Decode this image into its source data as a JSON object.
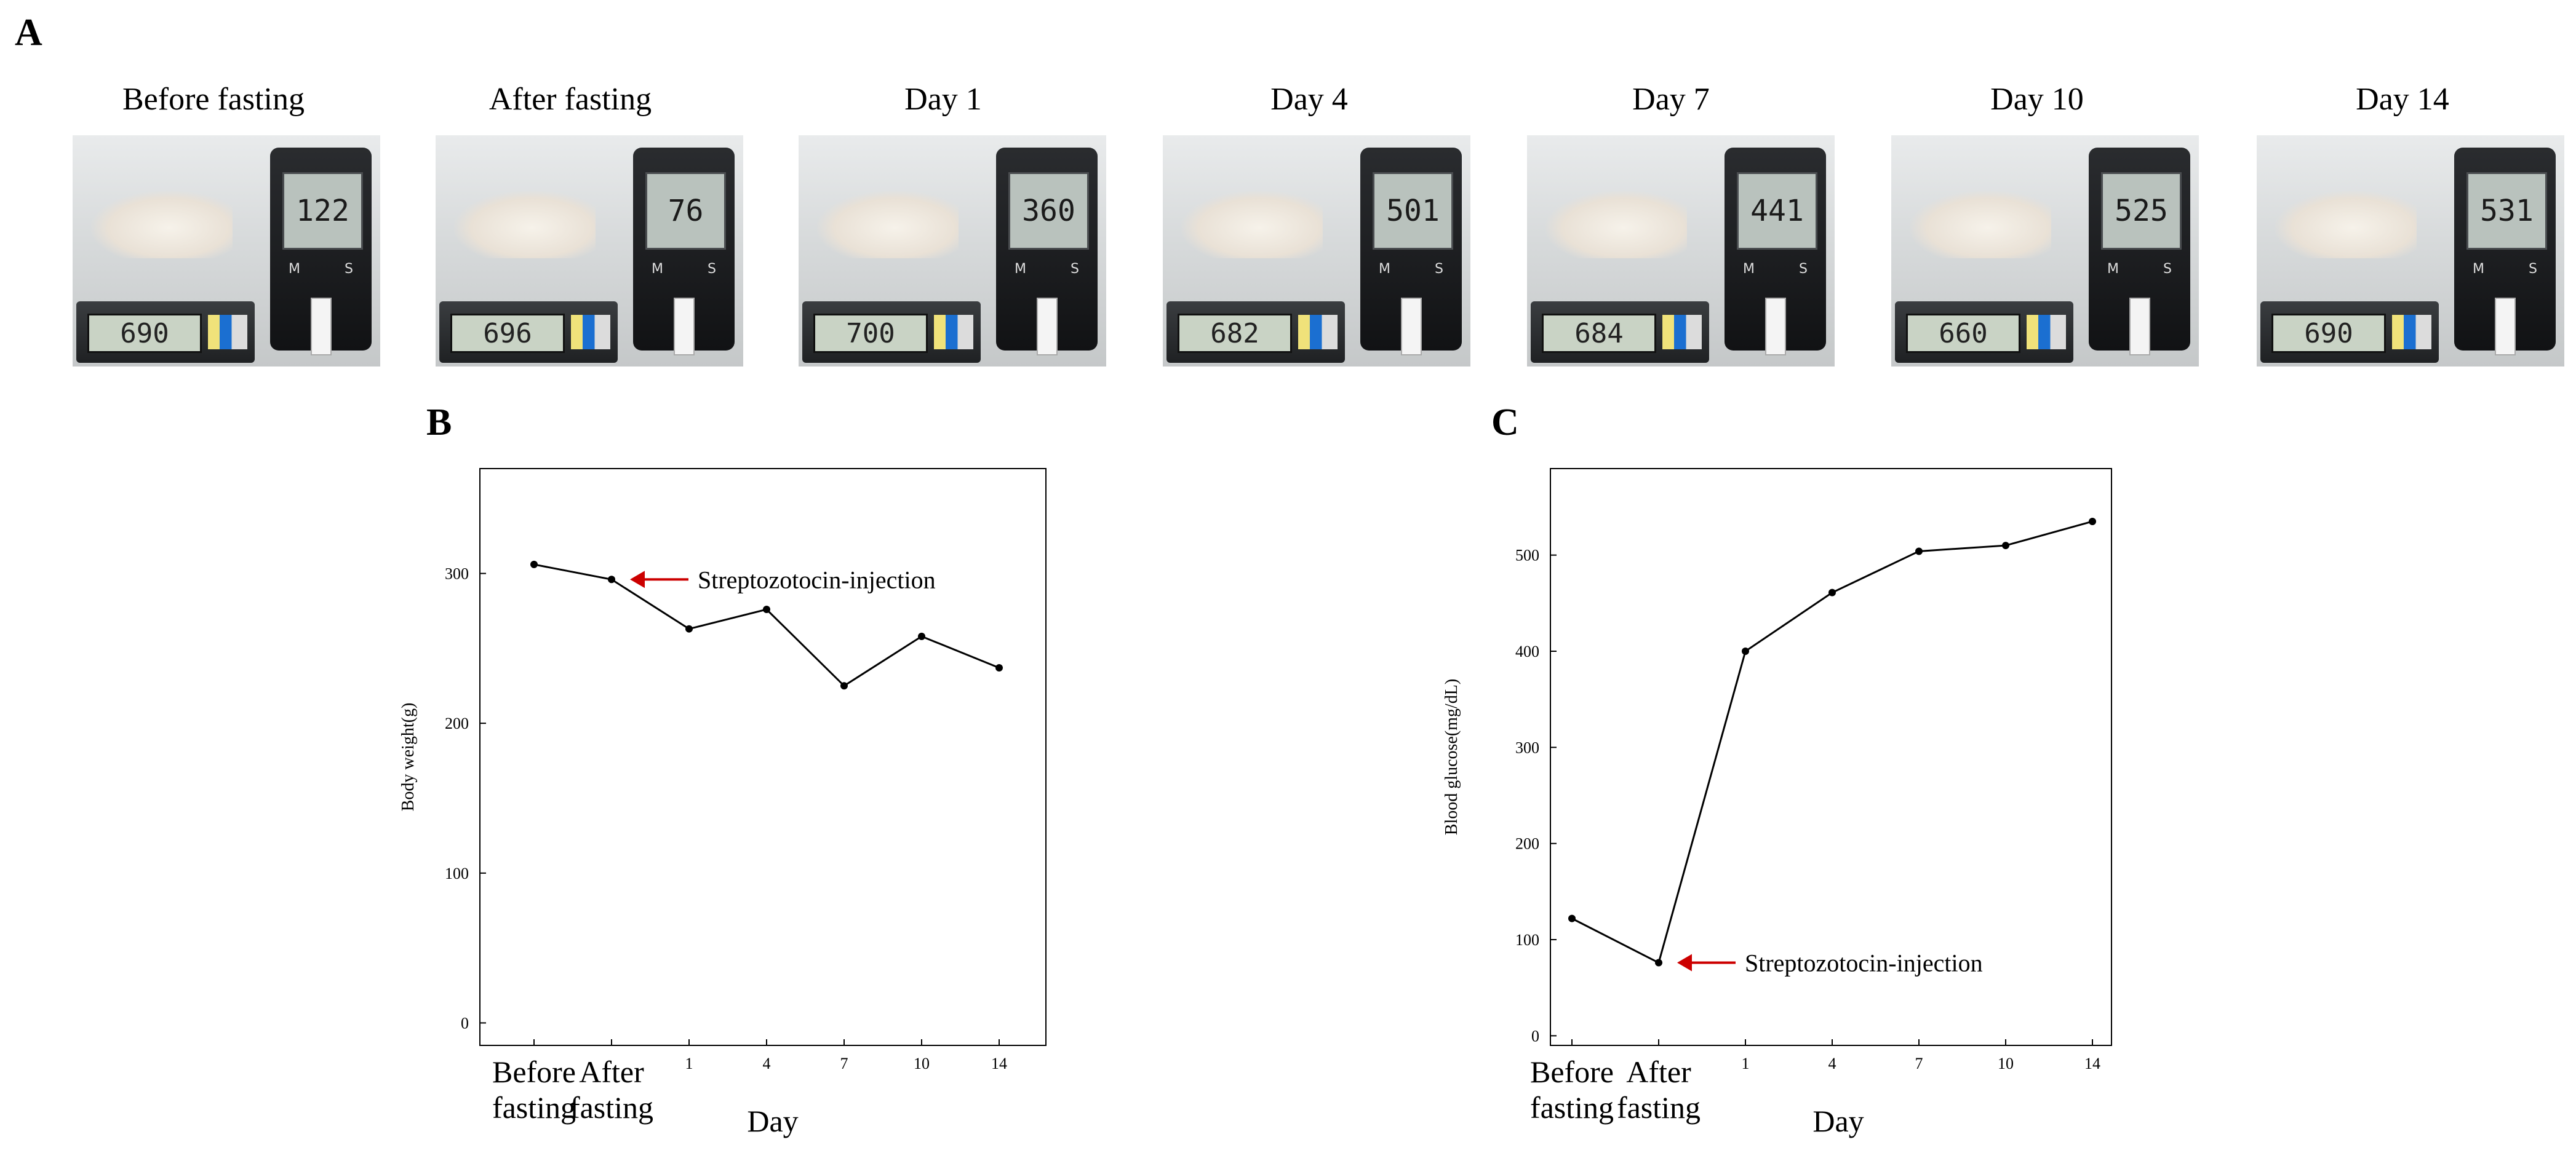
{
  "panels": {
    "a": "A",
    "b": "B",
    "c": "C"
  },
  "photos": [
    {
      "label": "Before fasting",
      "weight_display": "690",
      "glucose_display": "122"
    },
    {
      "label": "After fasting",
      "weight_display": "696",
      "glucose_display": "76"
    },
    {
      "label": "Day 1",
      "weight_display": "700",
      "glucose_display": "360"
    },
    {
      "label": "Day 4",
      "weight_display": "682",
      "glucose_display": "501"
    },
    {
      "label": "Day 7",
      "weight_display": "684",
      "glucose_display": "441"
    },
    {
      "label": "Day 10",
      "weight_display": "660",
      "glucose_display": "525"
    },
    {
      "label": "Day 14",
      "weight_display": "690",
      "glucose_display": "531"
    }
  ],
  "meter_buttons": [
    "M",
    "S"
  ],
  "colors": {
    "line": "#000000",
    "arrow": "#cc0000",
    "frame": "#000000"
  },
  "chart_data": [
    {
      "id": "B",
      "type": "line",
      "categories": [
        "Before fasting",
        "After fasting",
        "1",
        "4",
        "7",
        "10",
        "14"
      ],
      "category_lines": [
        [
          "Before",
          "fasting"
        ],
        [
          "After",
          "fasting"
        ],
        [
          "1"
        ],
        [
          "4"
        ],
        [
          "7"
        ],
        [
          "10"
        ],
        [
          "14"
        ]
      ],
      "values": [
        306,
        296,
        263,
        276,
        225,
        258,
        237
      ],
      "xlabel": "Day",
      "ylabel": "Body weight(g)",
      "ylim": [
        -15,
        370
      ],
      "yticks": [
        0,
        100,
        200,
        300
      ],
      "annotation": {
        "text": "Streptozotocin-injection",
        "target_index": 1
      }
    },
    {
      "id": "C",
      "type": "line",
      "categories": [
        "Before fasting",
        "After fasting",
        "1",
        "4",
        "7",
        "10",
        "14"
      ],
      "category_lines": [
        [
          "Before",
          "fasting"
        ],
        [
          "After",
          "fasting"
        ],
        [
          "1"
        ],
        [
          "4"
        ],
        [
          "7"
        ],
        [
          "10"
        ],
        [
          "14"
        ]
      ],
      "values": [
        122,
        76,
        400,
        461,
        504,
        510,
        535
      ],
      "xlabel": "Day",
      "ylabel": "Blood glucose(mg/dL)",
      "ylim": [
        -10,
        590
      ],
      "yticks": [
        0,
        100,
        200,
        300,
        400,
        500
      ],
      "annotation": {
        "text": "Streptozotocin-injection",
        "target_index": 1
      }
    }
  ]
}
